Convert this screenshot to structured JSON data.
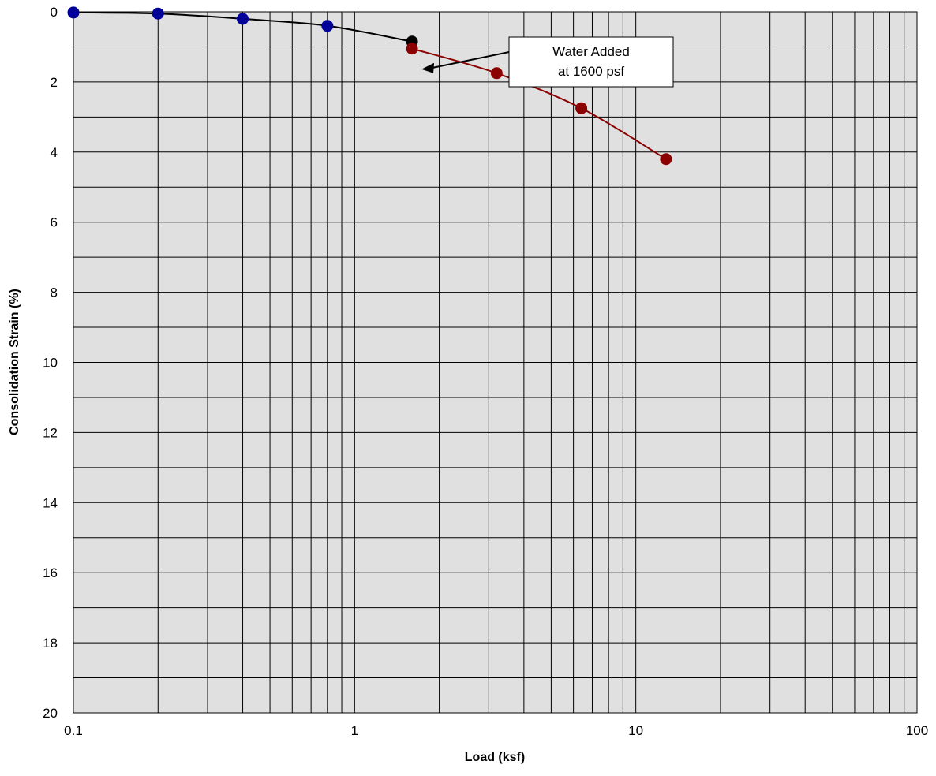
{
  "chart_data": {
    "type": "scatter",
    "title": "",
    "xlabel": "Load (ksf)",
    "ylabel": "Consolidation Strain (%)",
    "xscale": "log",
    "xlim": [
      0.1,
      100
    ],
    "ylim": [
      0,
      20
    ],
    "y_inverted": true,
    "grid": true,
    "x_ticks": [
      "0.1",
      "1",
      "10",
      "100"
    ],
    "y_ticks": [
      "0",
      "2",
      "4",
      "6",
      "8",
      "10",
      "12",
      "14",
      "16",
      "18",
      "20"
    ],
    "series": [
      {
        "color": "#000099",
        "x": [
          0.1,
          0.2,
          0.4,
          0.8
        ],
        "y": [
          0.02,
          0.05,
          0.2,
          0.4
        ]
      },
      {
        "color": "#000000",
        "x": [
          1.6
        ],
        "y": [
          0.85
        ]
      },
      {
        "color": "#8b0000",
        "x": [
          1.6,
          3.2,
          6.4,
          12.8
        ],
        "y": [
          1.05,
          1.75,
          2.75,
          4.2
        ]
      }
    ],
    "annotations": [
      {
        "text_lines": [
          "Water Added",
          "at 1600 psf"
        ],
        "points_to_x": 1.6,
        "points_to_y": 1.3
      }
    ]
  }
}
